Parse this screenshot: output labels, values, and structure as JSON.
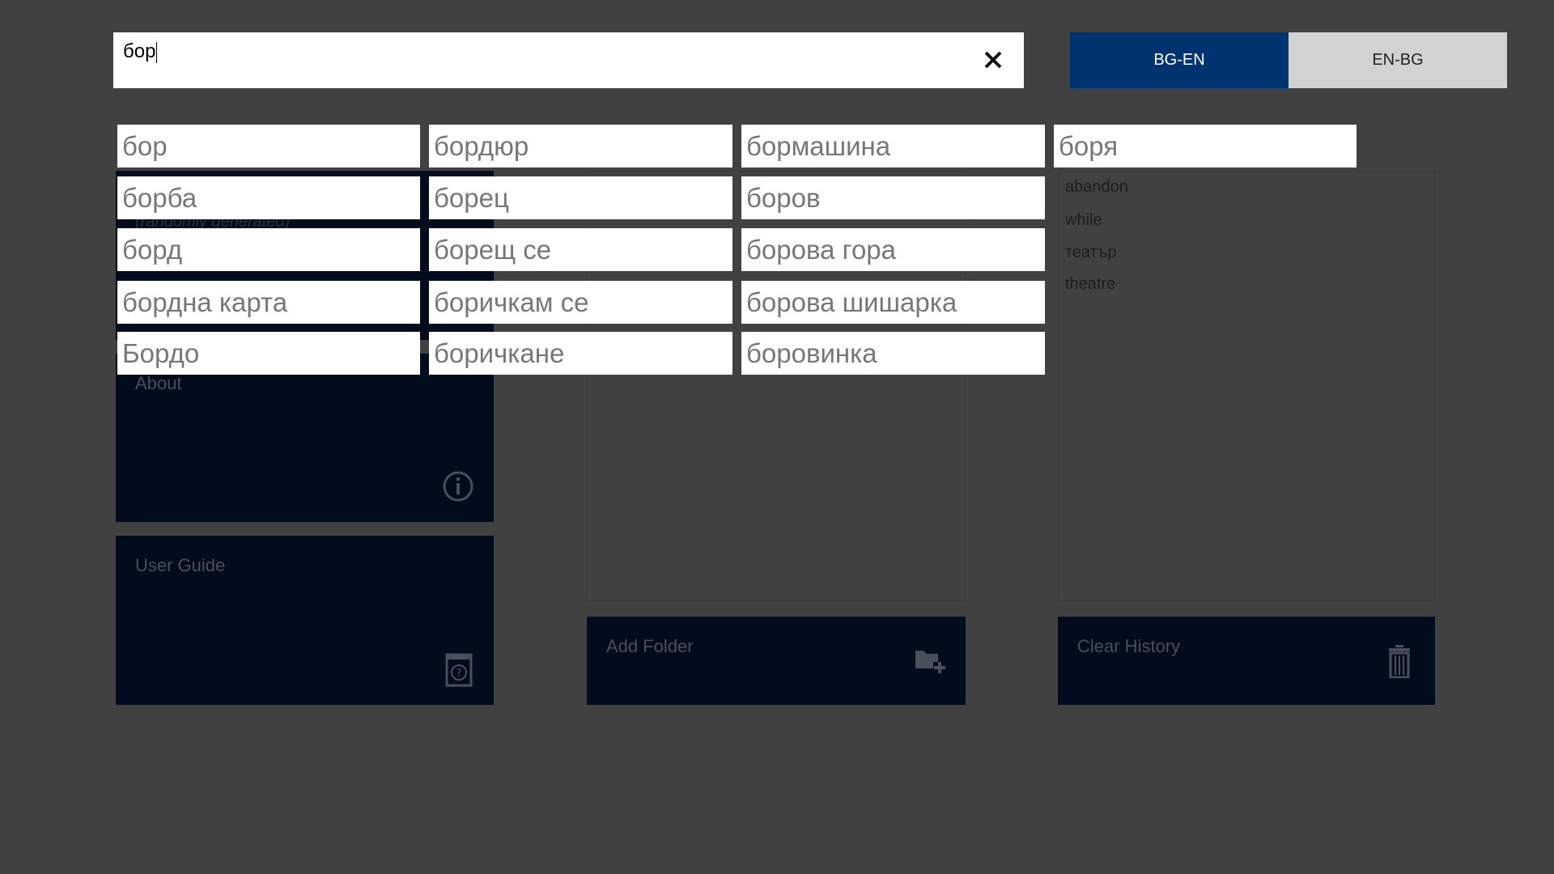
{
  "search": {
    "value": "бор",
    "clear_icon": "close-icon"
  },
  "direction": {
    "options": [
      "BG-EN",
      "EN-BG"
    ],
    "selected": "BG-EN",
    "active_color": "#003370"
  },
  "tiles": {
    "word_of_day_subtitle": "(randomly generated)",
    "about": "About",
    "user_guide": "User Guide",
    "add_folder": "Add Folder",
    "clear_history": "Clear History"
  },
  "history": [
    "abandon",
    "while",
    "театър",
    "theatre"
  ],
  "suggestions": [
    [
      "бор",
      "борба",
      "борд",
      "бордна карта",
      "Бордо"
    ],
    [
      "бордюр",
      "борец",
      "борещ се",
      "боричкам се",
      "боричкане"
    ],
    [
      "бормашина",
      "боров",
      "борова гора",
      "борова шишарка",
      "боровинка"
    ],
    [
      "боря"
    ]
  ]
}
